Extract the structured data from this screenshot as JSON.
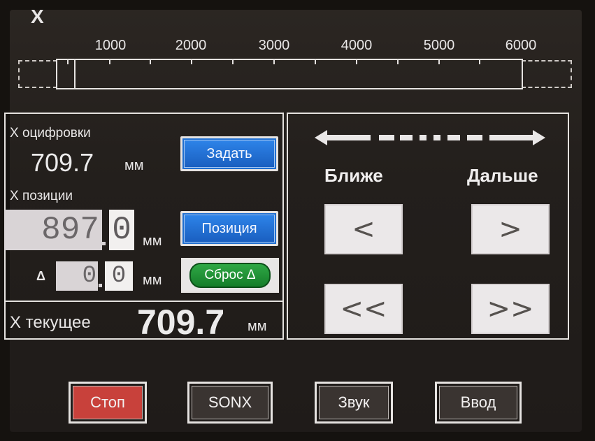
{
  "header": {
    "axis_label": "X",
    "ruler_ticks": [
      "1000",
      "2000",
      "3000",
      "4000",
      "5000",
      "6000"
    ]
  },
  "digitize": {
    "label": "X оцифровки",
    "value": "709.7",
    "unit": "мм",
    "set_button": "Задать"
  },
  "position": {
    "label": "X позиции",
    "value_int": "897",
    "value_dec": "0",
    "unit": "мм",
    "button": "Позиция"
  },
  "delta": {
    "symbol": "Δ",
    "value_int": "0",
    "value_dec": "0",
    "unit": "мм",
    "reset_button": "Сброс Δ"
  },
  "current": {
    "label": "X текущее",
    "value": "709.7",
    "unit": "мм"
  },
  "nav": {
    "closer_label": "Ближе",
    "farther_label": "Дальше",
    "step_left": "<",
    "step_right": ">",
    "fast_left": "<<",
    "fast_right": ">>"
  },
  "bottom": {
    "stop": "Стоп",
    "sonx": "SONX",
    "sound": "Звук",
    "enter": "Ввод"
  },
  "colors": {
    "stop_bg": "#c8413b",
    "button_bg": "#3a3431",
    "accent_blue": "#1f6fd1",
    "reset_green": "#1e9337"
  }
}
